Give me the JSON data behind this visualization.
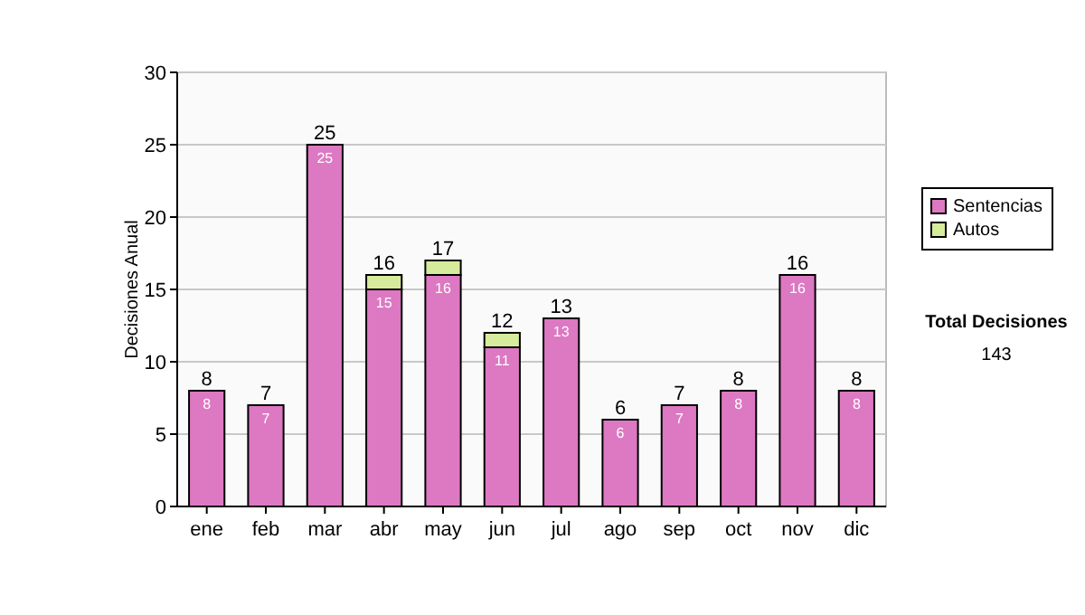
{
  "chart_data": {
    "type": "bar",
    "stacked": true,
    "ylabel": "Decisiones Anual",
    "categories": [
      "ene",
      "feb",
      "mar",
      "abr",
      "may",
      "jun",
      "jul",
      "ago",
      "sep",
      "oct",
      "nov",
      "dic"
    ],
    "series": [
      {
        "name": "Sentencias",
        "color": "#dd78c2",
        "values": [
          8,
          7,
          25,
          15,
          16,
          11,
          13,
          6,
          7,
          8,
          16,
          8
        ],
        "value_labels": [
          "8",
          "7",
          "25",
          "15",
          "16",
          "11",
          "13",
          "6",
          "7",
          "8",
          "16",
          "8"
        ]
      },
      {
        "name": "Autos",
        "color": "#d6eb9c",
        "values": [
          0,
          0,
          0,
          1,
          1,
          1,
          0,
          0,
          0,
          0,
          0,
          0
        ]
      }
    ],
    "totals": [
      "8",
      "7",
      "25",
      "16",
      "17",
      "12",
      "13",
      "6",
      "7",
      "8",
      "16",
      "8"
    ],
    "ylim": [
      0,
      30
    ],
    "yticks": [
      0,
      5,
      10,
      15,
      20,
      25,
      30
    ],
    "grid": "y",
    "legend": "right",
    "annotations": [
      "Total Decisiones",
      "143"
    ]
  }
}
